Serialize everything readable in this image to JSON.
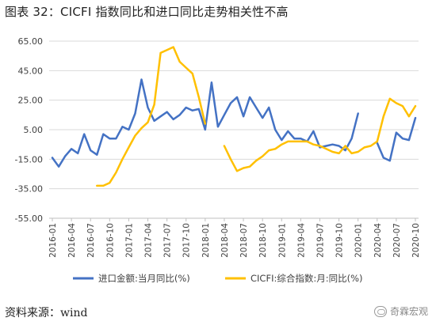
{
  "title": "图表 32：CICFI 指数同比和进口同比走势相关性不高",
  "source": "资料来源：wind",
  "watermark": "奇霖宏观",
  "colors": {
    "import": "#4472C4",
    "cicfi": "#FFC000",
    "grid": "#d9d9d9",
    "axis": "#bfbfbf"
  },
  "chart_data": {
    "type": "line",
    "title": "图表 32：CICFI 指数同比和进口同比走势相关性不高",
    "xlabel": "",
    "ylabel": "",
    "ylim": [
      -55,
      65
    ],
    "yticks": [
      65,
      45,
      25,
      5,
      -15,
      -35,
      -55
    ],
    "ytick_labels": [
      "65.00",
      "45.00",
      "25.00",
      "5.00",
      "-15.00",
      "-35.00",
      "-55.00"
    ],
    "grid": true,
    "legend_position": "bottom",
    "x": [
      "2016-01",
      "2016-02",
      "2016-03",
      "2016-04",
      "2016-05",
      "2016-06",
      "2016-07",
      "2016-08",
      "2016-09",
      "2016-10",
      "2016-11",
      "2016-12",
      "2017-01",
      "2017-02",
      "2017-03",
      "2017-04",
      "2017-05",
      "2017-06",
      "2017-07",
      "2017-08",
      "2017-09",
      "2017-10",
      "2017-11",
      "2017-12",
      "2018-01",
      "2018-02",
      "2018-03",
      "2018-04",
      "2018-05",
      "2018-06",
      "2018-07",
      "2018-08",
      "2018-09",
      "2018-10",
      "2018-11",
      "2018-12",
      "2019-01",
      "2019-02",
      "2019-03",
      "2019-04",
      "2019-05",
      "2019-06",
      "2019-07",
      "2019-08",
      "2019-09",
      "2019-10",
      "2019-11",
      "2019-12",
      "2020-01",
      "2020-02",
      "2020-03",
      "2020-04",
      "2020-05",
      "2020-06",
      "2020-07",
      "2020-08",
      "2020-09",
      "2020-10"
    ],
    "xtick_labels": [
      "2016-01",
      "2016-04",
      "2016-07",
      "2016-10",
      "2017-01",
      "2017-04",
      "2017-07",
      "2017-10",
      "2018-01",
      "2018-04",
      "2018-07",
      "2018-10",
      "2019-01",
      "2019-04",
      "2019-07",
      "2019-10",
      "2020-01",
      "2020-04",
      "2020-07",
      "2020-10"
    ],
    "series": [
      {
        "name": "进口金额:当月同比(%)",
        "values": [
          -14,
          -20,
          -13,
          -8,
          -11,
          2,
          -9,
          -12,
          2,
          -1,
          -1,
          7,
          5,
          16,
          39,
          20,
          11,
          14,
          17,
          12,
          15,
          20,
          18,
          19,
          5,
          37,
          7,
          15,
          23,
          27,
          14,
          27,
          20,
          13,
          20,
          5,
          -2,
          4,
          -1,
          -1,
          -3,
          4,
          -7,
          -6,
          -5,
          -6,
          -9,
          -1,
          16,
          null,
          null,
          -4,
          -14,
          -16,
          3,
          -1,
          -2,
          13
        ],
        "color": "#4472C4"
      },
      {
        "name": "CICFI:综合指数:月:同比(%)",
        "values": [
          null,
          null,
          null,
          null,
          null,
          null,
          null,
          -33,
          -33,
          -31,
          -24,
          -15,
          -7,
          1,
          6,
          10,
          22,
          57,
          59,
          61,
          51,
          47,
          43,
          27,
          9,
          null,
          null,
          -6,
          -15,
          -23,
          -21,
          -20,
          -16,
          -13,
          -9,
          -8,
          -5,
          -3,
          -3,
          -3,
          -3,
          -5,
          -6,
          -8,
          -10,
          -11,
          -6,
          -11,
          -10,
          -7,
          -6,
          -3,
          14,
          26,
          23,
          21,
          14,
          21
        ],
        "color": "#FFC000"
      }
    ]
  }
}
